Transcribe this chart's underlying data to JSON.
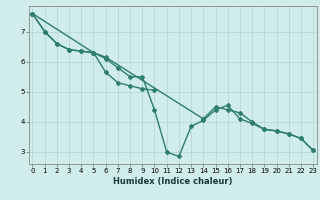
{
  "xlabel": "Humidex (Indice chaleur)",
  "line1_y": [
    7.6,
    7.0,
    6.6,
    6.4,
    6.35,
    6.3,
    6.1,
    5.8,
    5.5,
    5.5,
    4.4,
    3.0,
    2.85,
    3.85,
    4.05,
    4.4,
    4.55,
    4.1,
    3.95,
    3.75,
    3.7,
    3.6,
    3.45,
    3.05
  ],
  "line2_y": [
    7.6,
    7.0,
    6.6,
    6.4,
    6.35,
    6.3,
    5.65,
    5.3,
    5.2,
    5.1,
    5.05,
    null,
    null,
    null,
    null,
    null,
    null,
    null,
    null,
    null,
    null,
    null,
    null,
    null
  ],
  "line3_y": [
    7.6,
    null,
    null,
    null,
    null,
    6.3,
    6.15,
    null,
    null,
    null,
    null,
    null,
    null,
    null,
    4.1,
    4.5,
    4.4,
    4.3,
    4.0,
    3.75,
    3.7,
    3.6,
    3.45,
    3.05
  ],
  "x_values": [
    0,
    1,
    2,
    3,
    4,
    5,
    6,
    7,
    8,
    9,
    10,
    11,
    12,
    13,
    14,
    15,
    16,
    17,
    18,
    19,
    20,
    21,
    22,
    23
  ],
  "line_color": "#2e7d6e",
  "bg_color": "#d0eceb",
  "grid_color": "#b8d8d5",
  "ylim": [
    2.6,
    7.85
  ],
  "xlim": [
    -0.3,
    23.3
  ],
  "yticks": [
    3,
    4,
    5,
    6,
    7
  ],
  "xticks": [
    0,
    1,
    2,
    3,
    4,
    5,
    6,
    7,
    8,
    9,
    10,
    11,
    12,
    13,
    14,
    15,
    16,
    17,
    18,
    19,
    20,
    21,
    22,
    23
  ],
  "marker": "D",
  "marker_size": 2.0,
  "line_width": 1.0,
  "tick_fontsize": 5.0,
  "xlabel_fontsize": 6.0
}
